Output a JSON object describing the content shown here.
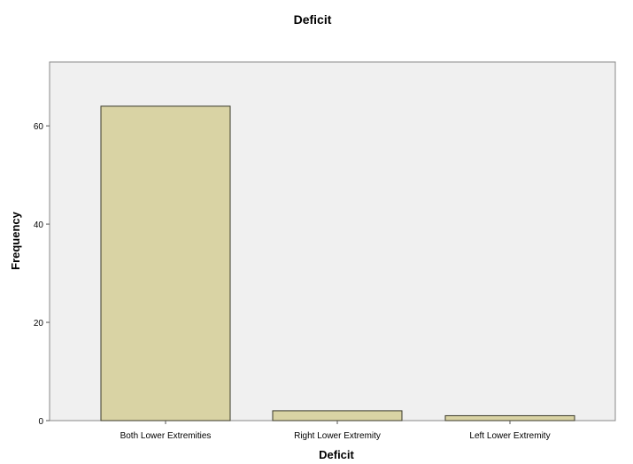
{
  "chart_data": {
    "type": "bar",
    "title": "Deficit",
    "xlabel": "Deficit",
    "ylabel": "Frequency",
    "categories": [
      "Both Lower Extremities",
      "Right Lower Extremity",
      "Left Lower Extremity"
    ],
    "values": [
      64,
      2,
      1
    ],
    "ylim": [
      0,
      73
    ],
    "yticks": [
      0,
      20,
      40,
      60
    ],
    "grid": false,
    "colors": {
      "bar_fill": "#d9d3a4",
      "bar_stroke": "#3a3a2a",
      "plot_background": "#f0f0f0",
      "frame": "#888888"
    }
  }
}
